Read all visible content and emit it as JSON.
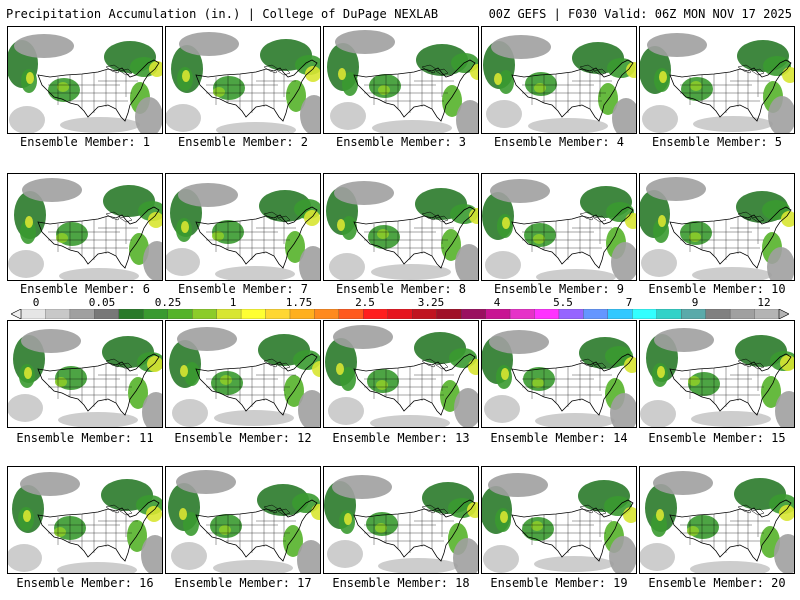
{
  "header": {
    "title": "Precipitation Accumulation (in.) | College of DuPage NEXLAB",
    "valid": "00Z GEFS | F030 Valid: 06Z MON NOV 17 2025"
  },
  "members": [
    "Ensemble Member: 1",
    "Ensemble Member: 2",
    "Ensemble Member: 3",
    "Ensemble Member: 4",
    "Ensemble Member: 5",
    "Ensemble Member: 6",
    "Ensemble Member: 7",
    "Ensemble Member: 8",
    "Ensemble Member: 9",
    "Ensemble Member: 10",
    "Ensemble Member: 11",
    "Ensemble Member: 12",
    "Ensemble Member: 13",
    "Ensemble Member: 14",
    "Ensemble Member: 15",
    "Ensemble Member: 16",
    "Ensemble Member: 17",
    "Ensemble Member: 18",
    "Ensemble Member: 19",
    "Ensemble Member: 20"
  ],
  "colorbar": {
    "tick_labels": [
      "0",
      "0.05",
      "0.25",
      "1",
      "1.75",
      "2.5",
      "3.25",
      "4",
      "5.5",
      "7",
      "9",
      "12"
    ],
    "colors": [
      "#e6e6e6",
      "#c8c8c8",
      "#a0a0a0",
      "#787878",
      "#2a7a2a",
      "#3a9a30",
      "#55b32a",
      "#8ccc2a",
      "#d8e632",
      "#ffff32",
      "#ffd732",
      "#ffaf1e",
      "#ff8a1e",
      "#ff5a1e",
      "#ff1e1e",
      "#e6141e",
      "#c01420",
      "#a01028",
      "#9a1060",
      "#c81493",
      "#e632c8",
      "#ff32ff",
      "#9664ff",
      "#6496ff",
      "#32c8ff",
      "#32ffff",
      "#32d2c8",
      "#5aaaaa",
      "#808080",
      "#a0a0a0",
      "#b4b4b4"
    ]
  }
}
